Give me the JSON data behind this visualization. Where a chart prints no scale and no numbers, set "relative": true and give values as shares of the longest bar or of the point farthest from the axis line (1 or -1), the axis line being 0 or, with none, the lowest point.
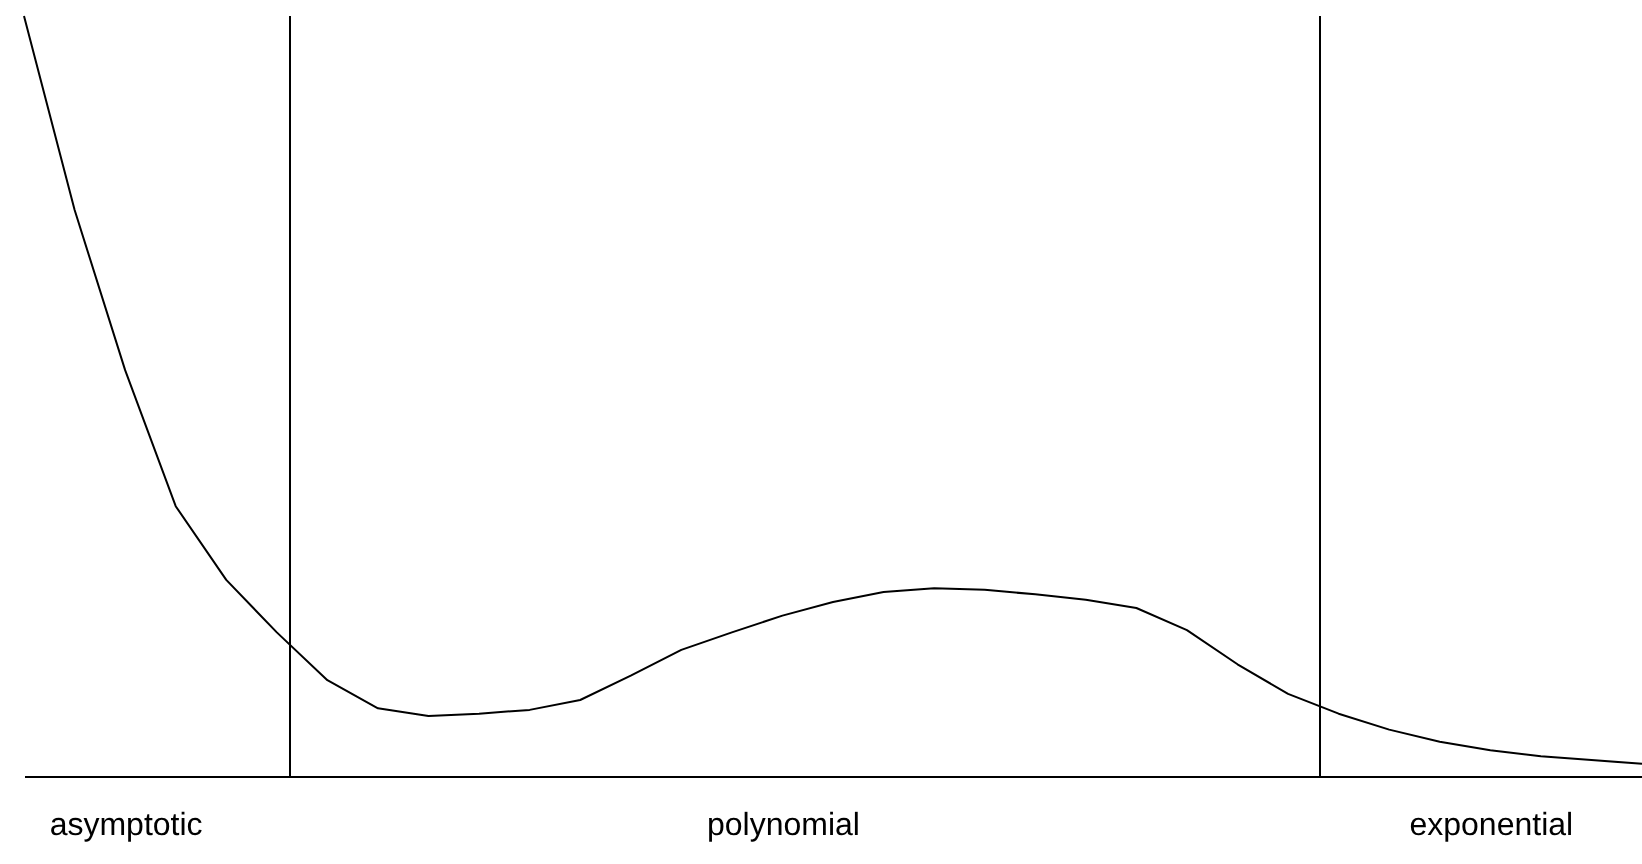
{
  "chart_data": {
    "type": "line",
    "relative": true,
    "categories": [
      null,
      null,
      "asymptotic",
      null,
      null,
      null,
      null,
      null,
      null,
      null,
      null,
      null,
      null,
      null,
      null,
      "polynomial",
      null,
      null,
      null,
      null,
      null,
      null,
      null,
      null,
      null,
      null,
      null,
      null,
      null,
      "exponential",
      null,
      null,
      null
    ],
    "series": [
      {
        "color": "#000000",
        "values": [
          1.0,
          0.745,
          0.534,
          0.355,
          0.258,
          0.189,
          0.126,
          0.089,
          0.079,
          0.082,
          0.087,
          0.1,
          0.132,
          0.166,
          0.189,
          0.211,
          0.229,
          0.242,
          0.247,
          0.245,
          0.239,
          0.232,
          0.221,
          0.192,
          0.147,
          0.108,
          0.082,
          0.061,
          0.045,
          0.034,
          0.026,
          0.021,
          0.016
        ]
      }
    ],
    "marker": "none",
    "line_style": "solid"
  }
}
